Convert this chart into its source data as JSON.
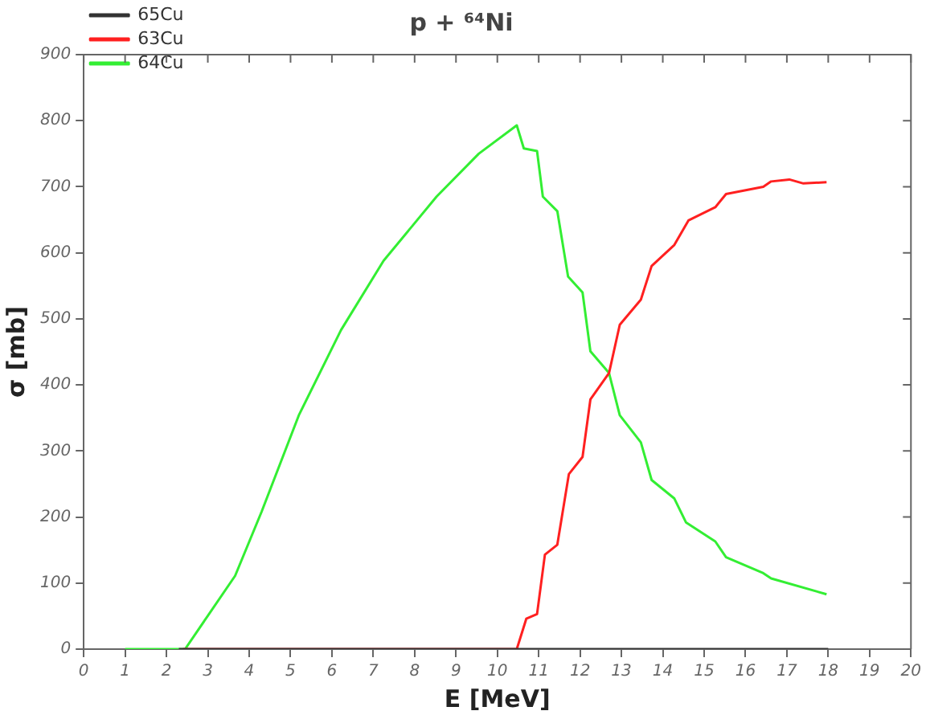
{
  "chart_data": {
    "type": "line",
    "title": "p + ⁶⁴Ni",
    "xlabel": "E [MeV]",
    "ylabel": "σ [mb]",
    "xlim": [
      0,
      20
    ],
    "xticks": [
      0,
      1,
      2,
      3,
      4,
      5,
      6,
      7,
      8,
      9,
      10,
      11,
      12,
      13,
      14,
      15,
      16,
      17,
      18,
      19,
      20
    ],
    "ylim": [
      0,
      900
    ],
    "yticks": [
      0,
      100,
      200,
      300,
      400,
      500,
      600,
      700,
      800,
      900
    ],
    "grid": false,
    "legend": "top left",
    "marker": "none",
    "line_style": "solid",
    "series": [
      {
        "name": "65Cu",
        "color": "#333333",
        "x": [
          2.3,
          18
        ],
        "values": [
          0,
          0
        ]
      },
      {
        "name": "63Cu",
        "color": "#ff2020",
        "x": [
          2.4,
          10.47,
          10.7,
          10.96,
          11.15,
          11.45,
          11.73,
          12.06,
          12.25,
          12.7,
          12.96,
          13.47,
          13.73,
          14.28,
          14.62,
          15.27,
          15.53,
          16.43,
          16.62,
          17.06,
          17.4,
          17.96
        ],
        "values": [
          0,
          0,
          46,
          53,
          143,
          158,
          265,
          291,
          378,
          418,
          491,
          529,
          580,
          612,
          649,
          669,
          689,
          700,
          708,
          711,
          705,
          707
        ]
      },
      {
        "name": "64Cu",
        "color": "#33ee33",
        "x": [
          1,
          2.45,
          3.66,
          4.3,
          5.2,
          6.22,
          7.25,
          8.53,
          9.55,
          10.47,
          10.64,
          10.96,
          11.1,
          11.45,
          11.71,
          12.06,
          12.25,
          12.7,
          12.96,
          13.47,
          13.73,
          14.28,
          14.56,
          15.27,
          15.53,
          16.43,
          16.62,
          17.96
        ],
        "values": [
          0,
          0,
          111,
          208,
          354,
          483,
          588,
          685,
          750,
          793,
          758,
          754,
          685,
          663,
          564,
          540,
          451,
          418,
          354,
          313,
          256,
          228,
          192,
          163,
          139,
          115,
          107,
          83
        ]
      }
    ]
  }
}
